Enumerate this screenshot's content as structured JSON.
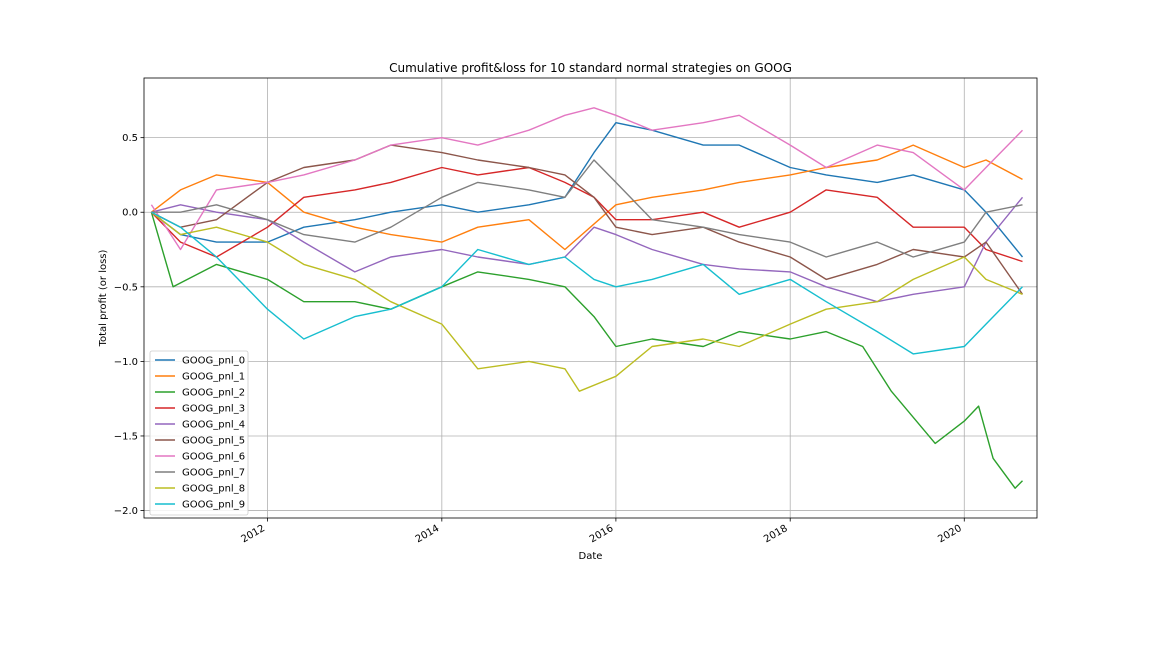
{
  "chart_data": {
    "type": "line",
    "title": "Cumulative profit&loss for 10 standard normal strategies on GOOG",
    "xlabel": "Date",
    "ylabel": "Total profit (or loss)",
    "x_range": [
      "2010-08-01",
      "2020-11-01"
    ],
    "ylim": [
      -2.05,
      0.9
    ],
    "x_ticks": [
      {
        "label": "2012",
        "date": "2012-01-01"
      },
      {
        "label": "2014",
        "date": "2014-01-01"
      },
      {
        "label": "2016",
        "date": "2016-01-01"
      },
      {
        "label": "2018",
        "date": "2018-01-01"
      },
      {
        "label": "2020",
        "date": "2020-01-01"
      }
    ],
    "y_ticks": [
      {
        "label": "0.5",
        "value": 0.5
      },
      {
        "label": "0.0",
        "value": 0.0
      },
      {
        "label": "−0.5",
        "value": -0.5
      },
      {
        "label": "−1.0",
        "value": -1.0
      },
      {
        "label": "−1.5",
        "value": -1.5
      },
      {
        "label": "−2.0",
        "value": -2.0
      }
    ],
    "grid": true,
    "legend_position": "lower-left",
    "series": [
      {
        "name": "GOOG_pnl_0",
        "color": "#1f77b4",
        "points": [
          [
            "2010-09-01",
            0.0
          ],
          [
            "2011-01-01",
            -0.15
          ],
          [
            "2011-06-01",
            -0.2
          ],
          [
            "2012-01-01",
            -0.2
          ],
          [
            "2012-06-01",
            -0.1
          ],
          [
            "2013-01-01",
            -0.05
          ],
          [
            "2013-06-01",
            0.0
          ],
          [
            "2014-01-01",
            0.05
          ],
          [
            "2014-06-01",
            0.0
          ],
          [
            "2015-01-01",
            0.05
          ],
          [
            "2015-06-01",
            0.1
          ],
          [
            "2015-10-01",
            0.4
          ],
          [
            "2016-01-01",
            0.6
          ],
          [
            "2016-06-01",
            0.55
          ],
          [
            "2017-01-01",
            0.45
          ],
          [
            "2017-06-01",
            0.45
          ],
          [
            "2018-01-01",
            0.3
          ],
          [
            "2018-06-01",
            0.25
          ],
          [
            "2019-01-01",
            0.2
          ],
          [
            "2019-06-01",
            0.25
          ],
          [
            "2020-01-01",
            0.15
          ],
          [
            "2020-04-01",
            0.0
          ],
          [
            "2020-09-01",
            -0.3
          ]
        ]
      },
      {
        "name": "GOOG_pnl_1",
        "color": "#ff7f0e",
        "points": [
          [
            "2010-09-01",
            0.0
          ],
          [
            "2011-01-01",
            0.15
          ],
          [
            "2011-06-01",
            0.25
          ],
          [
            "2012-01-01",
            0.2
          ],
          [
            "2012-06-01",
            0.0
          ],
          [
            "2013-01-01",
            -0.1
          ],
          [
            "2013-06-01",
            -0.15
          ],
          [
            "2014-01-01",
            -0.2
          ],
          [
            "2014-06-01",
            -0.1
          ],
          [
            "2015-01-01",
            -0.05
          ],
          [
            "2015-06-01",
            -0.25
          ],
          [
            "2016-01-01",
            0.05
          ],
          [
            "2016-06-01",
            0.1
          ],
          [
            "2017-01-01",
            0.15
          ],
          [
            "2017-06-01",
            0.2
          ],
          [
            "2018-01-01",
            0.25
          ],
          [
            "2018-06-01",
            0.3
          ],
          [
            "2019-01-01",
            0.35
          ],
          [
            "2019-06-01",
            0.45
          ],
          [
            "2020-01-01",
            0.3
          ],
          [
            "2020-04-01",
            0.35
          ],
          [
            "2020-09-01",
            0.22
          ]
        ]
      },
      {
        "name": "GOOG_pnl_2",
        "color": "#2ca02c",
        "points": [
          [
            "2010-09-01",
            0.0
          ],
          [
            "2010-12-01",
            -0.5
          ],
          [
            "2011-06-01",
            -0.35
          ],
          [
            "2012-01-01",
            -0.45
          ],
          [
            "2012-06-01",
            -0.6
          ],
          [
            "2013-01-01",
            -0.6
          ],
          [
            "2013-06-01",
            -0.65
          ],
          [
            "2014-01-01",
            -0.5
          ],
          [
            "2014-06-01",
            -0.4
          ],
          [
            "2015-01-01",
            -0.45
          ],
          [
            "2015-06-01",
            -0.5
          ],
          [
            "2015-10-01",
            -0.7
          ],
          [
            "2016-01-01",
            -0.9
          ],
          [
            "2016-06-01",
            -0.85
          ],
          [
            "2017-01-01",
            -0.9
          ],
          [
            "2017-06-01",
            -0.8
          ],
          [
            "2018-01-01",
            -0.85
          ],
          [
            "2018-06-01",
            -0.8
          ],
          [
            "2018-11-01",
            -0.9
          ],
          [
            "2019-03-01",
            -1.2
          ],
          [
            "2019-09-01",
            -1.55
          ],
          [
            "2020-01-01",
            -1.4
          ],
          [
            "2020-03-01",
            -1.3
          ],
          [
            "2020-05-01",
            -1.65
          ],
          [
            "2020-08-01",
            -1.85
          ],
          [
            "2020-09-01",
            -1.8
          ]
        ]
      },
      {
        "name": "GOOG_pnl_3",
        "color": "#d62728",
        "points": [
          [
            "2010-09-01",
            0.0
          ],
          [
            "2011-01-01",
            -0.2
          ],
          [
            "2011-06-01",
            -0.3
          ],
          [
            "2012-01-01",
            -0.1
          ],
          [
            "2012-06-01",
            0.1
          ],
          [
            "2013-01-01",
            0.15
          ],
          [
            "2013-06-01",
            0.2
          ],
          [
            "2014-01-01",
            0.3
          ],
          [
            "2014-06-01",
            0.25
          ],
          [
            "2015-01-01",
            0.3
          ],
          [
            "2015-06-01",
            0.2
          ],
          [
            "2015-10-01",
            0.1
          ],
          [
            "2016-01-01",
            -0.05
          ],
          [
            "2016-06-01",
            -0.05
          ],
          [
            "2017-01-01",
            0.0
          ],
          [
            "2017-06-01",
            -0.1
          ],
          [
            "2018-01-01",
            0.0
          ],
          [
            "2018-06-01",
            0.15
          ],
          [
            "2019-01-01",
            0.1
          ],
          [
            "2019-06-01",
            -0.1
          ],
          [
            "2020-01-01",
            -0.1
          ],
          [
            "2020-04-01",
            -0.25
          ],
          [
            "2020-09-01",
            -0.33
          ]
        ]
      },
      {
        "name": "GOOG_pnl_4",
        "color": "#9467bd",
        "points": [
          [
            "2010-09-01",
            0.0
          ],
          [
            "2011-01-01",
            0.05
          ],
          [
            "2011-06-01",
            0.0
          ],
          [
            "2012-01-01",
            -0.05
          ],
          [
            "2012-06-01",
            -0.2
          ],
          [
            "2013-01-01",
            -0.4
          ],
          [
            "2013-06-01",
            -0.3
          ],
          [
            "2014-01-01",
            -0.25
          ],
          [
            "2014-06-01",
            -0.3
          ],
          [
            "2015-01-01",
            -0.35
          ],
          [
            "2015-06-01",
            -0.3
          ],
          [
            "2015-10-01",
            -0.1
          ],
          [
            "2016-01-01",
            -0.15
          ],
          [
            "2016-06-01",
            -0.25
          ],
          [
            "2017-01-01",
            -0.35
          ],
          [
            "2017-06-01",
            -0.38
          ],
          [
            "2018-01-01",
            -0.4
          ],
          [
            "2018-06-01",
            -0.5
          ],
          [
            "2019-01-01",
            -0.6
          ],
          [
            "2019-06-01",
            -0.55
          ],
          [
            "2020-01-01",
            -0.5
          ],
          [
            "2020-04-01",
            -0.2
          ],
          [
            "2020-09-01",
            0.1
          ]
        ]
      },
      {
        "name": "GOOG_pnl_5",
        "color": "#8c564b",
        "points": [
          [
            "2010-09-01",
            0.0
          ],
          [
            "2011-01-01",
            -0.1
          ],
          [
            "2011-06-01",
            -0.05
          ],
          [
            "2012-01-01",
            0.2
          ],
          [
            "2012-06-01",
            0.3
          ],
          [
            "2013-01-01",
            0.35
          ],
          [
            "2013-06-01",
            0.45
          ],
          [
            "2014-01-01",
            0.4
          ],
          [
            "2014-06-01",
            0.35
          ],
          [
            "2015-01-01",
            0.3
          ],
          [
            "2015-06-01",
            0.25
          ],
          [
            "2015-10-01",
            0.1
          ],
          [
            "2016-01-01",
            -0.1
          ],
          [
            "2016-06-01",
            -0.15
          ],
          [
            "2017-01-01",
            -0.1
          ],
          [
            "2017-06-01",
            -0.2
          ],
          [
            "2018-01-01",
            -0.3
          ],
          [
            "2018-06-01",
            -0.45
          ],
          [
            "2019-01-01",
            -0.35
          ],
          [
            "2019-06-01",
            -0.25
          ],
          [
            "2020-01-01",
            -0.3
          ],
          [
            "2020-04-01",
            -0.2
          ],
          [
            "2020-09-01",
            -0.55
          ]
        ]
      },
      {
        "name": "GOOG_pnl_6",
        "color": "#e377c2",
        "points": [
          [
            "2010-09-01",
            0.05
          ],
          [
            "2011-01-01",
            -0.25
          ],
          [
            "2011-06-01",
            0.15
          ],
          [
            "2012-01-01",
            0.2
          ],
          [
            "2012-06-01",
            0.25
          ],
          [
            "2013-01-01",
            0.35
          ],
          [
            "2013-06-01",
            0.45
          ],
          [
            "2014-01-01",
            0.5
          ],
          [
            "2014-06-01",
            0.45
          ],
          [
            "2015-01-01",
            0.55
          ],
          [
            "2015-06-01",
            0.65
          ],
          [
            "2015-10-01",
            0.7
          ],
          [
            "2016-01-01",
            0.65
          ],
          [
            "2016-06-01",
            0.55
          ],
          [
            "2017-01-01",
            0.6
          ],
          [
            "2017-06-01",
            0.65
          ],
          [
            "2018-01-01",
            0.45
          ],
          [
            "2018-06-01",
            0.3
          ],
          [
            "2019-01-01",
            0.45
          ],
          [
            "2019-06-01",
            0.4
          ],
          [
            "2020-01-01",
            0.15
          ],
          [
            "2020-04-01",
            0.3
          ],
          [
            "2020-09-01",
            0.55
          ]
        ]
      },
      {
        "name": "GOOG_pnl_7",
        "color": "#7f7f7f",
        "points": [
          [
            "2010-09-01",
            0.0
          ],
          [
            "2011-01-01",
            0.0
          ],
          [
            "2011-06-01",
            0.05
          ],
          [
            "2012-01-01",
            -0.05
          ],
          [
            "2012-06-01",
            -0.15
          ],
          [
            "2013-01-01",
            -0.2
          ],
          [
            "2013-06-01",
            -0.1
          ],
          [
            "2014-01-01",
            0.1
          ],
          [
            "2014-06-01",
            0.2
          ],
          [
            "2015-01-01",
            0.15
          ],
          [
            "2015-06-01",
            0.1
          ],
          [
            "2015-10-01",
            0.35
          ],
          [
            "2016-01-01",
            0.2
          ],
          [
            "2016-06-01",
            -0.05
          ],
          [
            "2017-01-01",
            -0.1
          ],
          [
            "2017-06-01",
            -0.15
          ],
          [
            "2018-01-01",
            -0.2
          ],
          [
            "2018-06-01",
            -0.3
          ],
          [
            "2019-01-01",
            -0.2
          ],
          [
            "2019-06-01",
            -0.3
          ],
          [
            "2020-01-01",
            -0.2
          ],
          [
            "2020-04-01",
            0.0
          ],
          [
            "2020-09-01",
            0.05
          ]
        ]
      },
      {
        "name": "GOOG_pnl_8",
        "color": "#bcbd22",
        "points": [
          [
            "2010-09-01",
            0.0
          ],
          [
            "2011-01-01",
            -0.15
          ],
          [
            "2011-06-01",
            -0.1
          ],
          [
            "2012-01-01",
            -0.2
          ],
          [
            "2012-06-01",
            -0.35
          ],
          [
            "2013-01-01",
            -0.45
          ],
          [
            "2013-06-01",
            -0.6
          ],
          [
            "2014-01-01",
            -0.75
          ],
          [
            "2014-06-01",
            -1.05
          ],
          [
            "2015-01-01",
            -1.0
          ],
          [
            "2015-06-01",
            -1.05
          ],
          [
            "2015-08-01",
            -1.2
          ],
          [
            "2016-01-01",
            -1.1
          ],
          [
            "2016-06-01",
            -0.9
          ],
          [
            "2017-01-01",
            -0.85
          ],
          [
            "2017-06-01",
            -0.9
          ],
          [
            "2018-01-01",
            -0.75
          ],
          [
            "2018-06-01",
            -0.65
          ],
          [
            "2019-01-01",
            -0.6
          ],
          [
            "2019-06-01",
            -0.45
          ],
          [
            "2020-01-01",
            -0.3
          ],
          [
            "2020-04-01",
            -0.45
          ],
          [
            "2020-09-01",
            -0.55
          ]
        ]
      },
      {
        "name": "GOOG_pnl_9",
        "color": "#17becf",
        "points": [
          [
            "2010-09-01",
            0.0
          ],
          [
            "2011-01-01",
            -0.1
          ],
          [
            "2011-06-01",
            -0.3
          ],
          [
            "2012-01-01",
            -0.65
          ],
          [
            "2012-06-01",
            -0.85
          ],
          [
            "2013-01-01",
            -0.7
          ],
          [
            "2013-06-01",
            -0.65
          ],
          [
            "2014-01-01",
            -0.5
          ],
          [
            "2014-06-01",
            -0.25
          ],
          [
            "2015-01-01",
            -0.35
          ],
          [
            "2015-06-01",
            -0.3
          ],
          [
            "2015-10-01",
            -0.45
          ],
          [
            "2016-01-01",
            -0.5
          ],
          [
            "2016-06-01",
            -0.45
          ],
          [
            "2017-01-01",
            -0.35
          ],
          [
            "2017-06-01",
            -0.55
          ],
          [
            "2018-01-01",
            -0.45
          ],
          [
            "2018-06-01",
            -0.6
          ],
          [
            "2019-01-01",
            -0.8
          ],
          [
            "2019-06-01",
            -0.95
          ],
          [
            "2020-01-01",
            -0.9
          ],
          [
            "2020-04-01",
            -0.75
          ],
          [
            "2020-09-01",
            -0.5
          ]
        ]
      }
    ]
  }
}
